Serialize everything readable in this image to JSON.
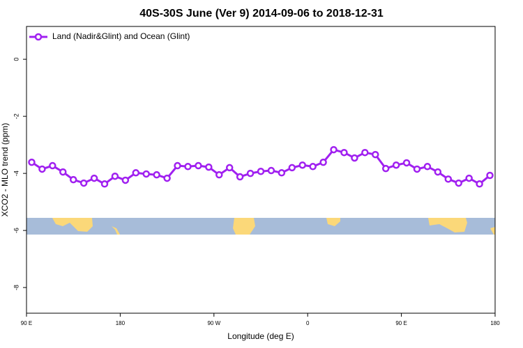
{
  "chart_data": {
    "type": "line",
    "title": "40S-30S June (Ver 9)   2014-09-06 to 2018-12-31",
    "x_label": "Longitude (deg E)",
    "y_label": "XCO2 - MLO trend (ppm)",
    "xlim": [
      90,
      540
    ],
    "ylim": [
      -8.9,
      1.15
    ],
    "xticks": [
      {
        "value": 90,
        "label": "90 E"
      },
      {
        "value": 180,
        "label": "180"
      },
      {
        "value": 270,
        "label": "90 W"
      },
      {
        "value": 360,
        "label": "0"
      },
      {
        "value": 450,
        "label": "90 E"
      },
      {
        "value": 540,
        "label": "180"
      }
    ],
    "yticks": [
      0,
      -2,
      -4,
      -6,
      -8
    ],
    "legend": "top-left",
    "x": [
      95,
      105,
      115,
      125,
      135,
      145,
      155,
      165,
      175,
      185,
      195,
      205,
      215,
      225,
      235,
      245,
      255,
      265,
      275,
      285,
      295,
      305,
      315,
      325,
      335,
      345,
      355,
      365,
      375,
      385,
      395,
      405,
      415,
      425,
      435,
      445,
      455,
      465,
      475,
      485,
      495,
      505,
      515,
      525,
      535
    ],
    "series": [
      {
        "name": "Land (Nadir&Glint) and Ocean (Glint)",
        "color": "#a020f0",
        "values": [
          -3.61,
          -3.85,
          -3.73,
          -3.95,
          -4.22,
          -4.34,
          -4.17,
          -4.37,
          -4.1,
          -4.24,
          -3.98,
          -4.02,
          -4.05,
          -4.17,
          -3.73,
          -3.76,
          -3.73,
          -3.78,
          -4.05,
          -3.8,
          -4.12,
          -4.0,
          -3.93,
          -3.9,
          -3.98,
          -3.8,
          -3.71,
          -3.76,
          -3.61,
          -3.17,
          -3.27,
          -3.46,
          -3.27,
          -3.34,
          -3.83,
          -3.71,
          -3.63,
          -3.85,
          -3.76,
          -3.95,
          -4.2,
          -4.34,
          -4.17,
          -4.37,
          -4.07
        ]
      }
    ]
  }
}
